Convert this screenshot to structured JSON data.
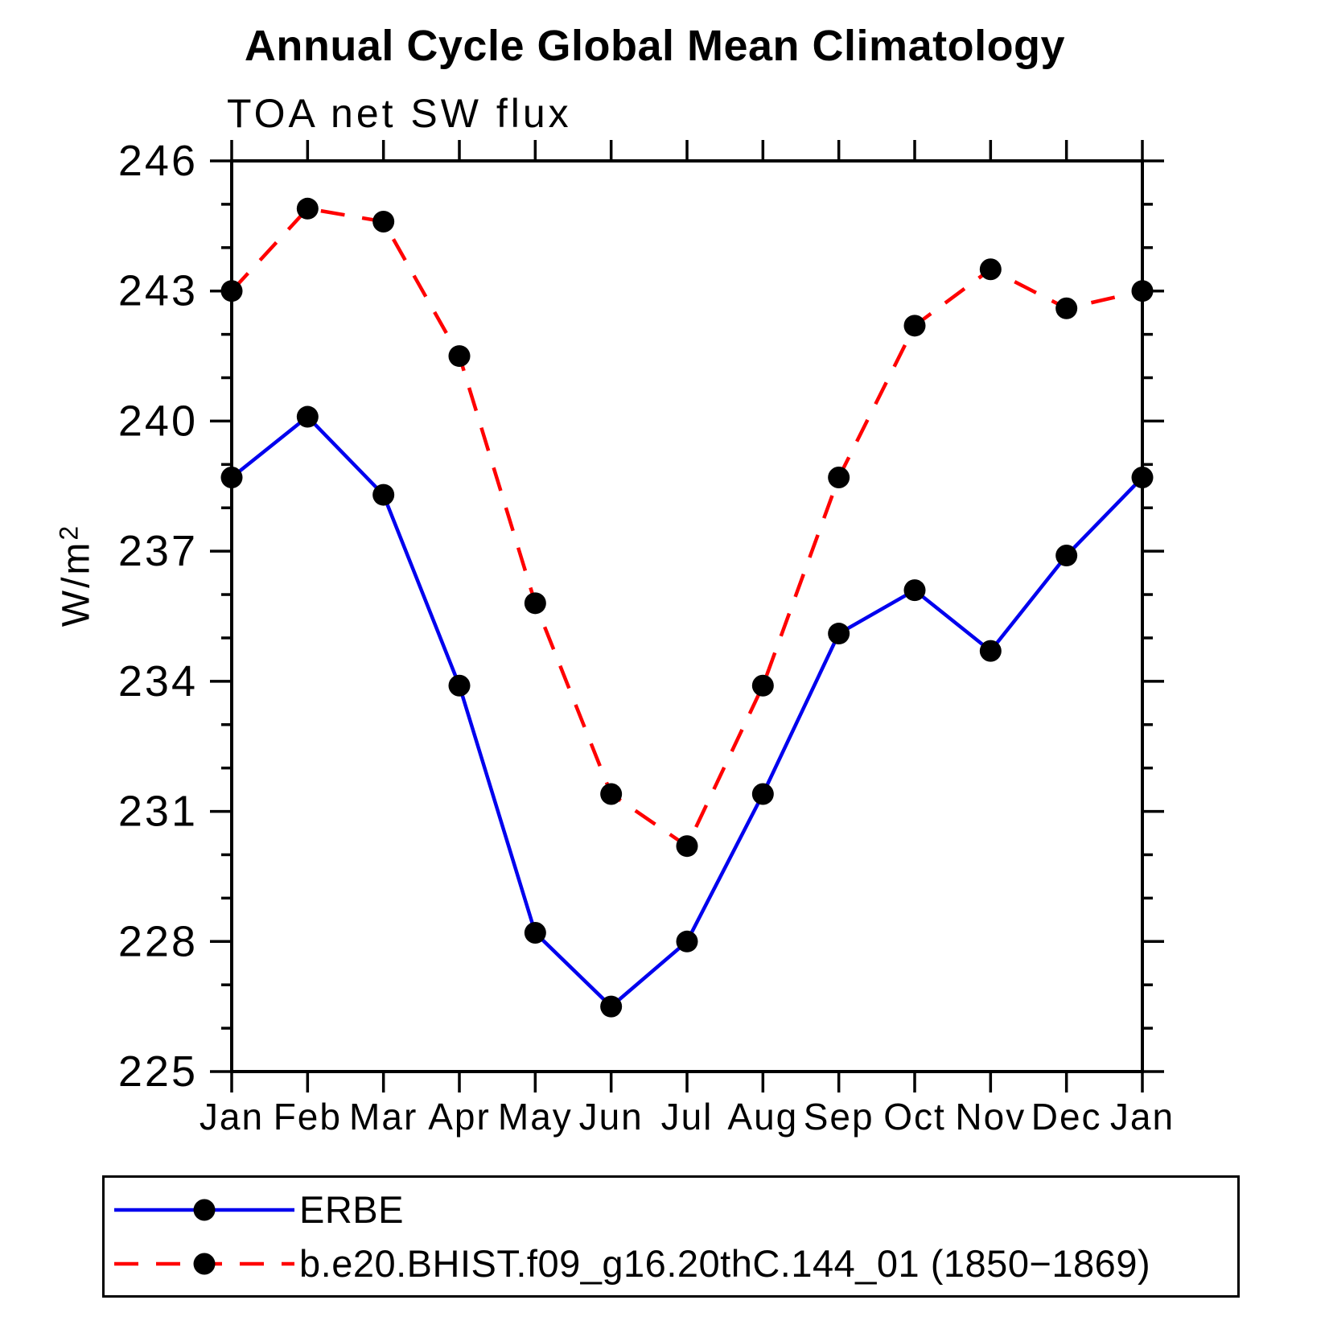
{
  "header": {
    "title": "Annual Cycle Global Mean Climatology",
    "subtitle": "TOA net SW flux"
  },
  "chart_data": {
    "type": "line",
    "title": "Annual Cycle Global Mean Climatology",
    "subtitle": "TOA net SW flux",
    "ylabel_base": "W/m",
    "ylabel_sup": "2",
    "x_categories": [
      "Jan",
      "Feb",
      "Mar",
      "Apr",
      "May",
      "Jun",
      "Jul",
      "Aug",
      "Sep",
      "Oct",
      "Nov",
      "Dec",
      "Jan"
    ],
    "ylim": [
      225,
      246
    ],
    "ytick_major": [
      225,
      228,
      231,
      234,
      237,
      240,
      243,
      246
    ],
    "ytick_minor_step": 1,
    "grid": "off",
    "legend_position": "bottom",
    "axis_color": "#000000",
    "marker_color": "#000000",
    "series": [
      {
        "name": "ERBE",
        "color": "#0000ee",
        "style": "solid",
        "marker": "circle",
        "values": [
          238.7,
          240.1,
          238.3,
          233.9,
          228.2,
          226.5,
          228.0,
          231.4,
          235.1,
          236.1,
          234.7,
          236.9,
          238.7
        ]
      },
      {
        "name": "b.e20.BHIST.f09_g16.20thC.144_01 (1850−1869)",
        "color": "#ff0000",
        "style": "dashed",
        "marker": "circle",
        "values": [
          243.0,
          244.9,
          244.6,
          241.5,
          235.8,
          231.4,
          230.2,
          233.9,
          238.7,
          242.2,
          243.5,
          242.6,
          243.0
        ]
      }
    ]
  }
}
